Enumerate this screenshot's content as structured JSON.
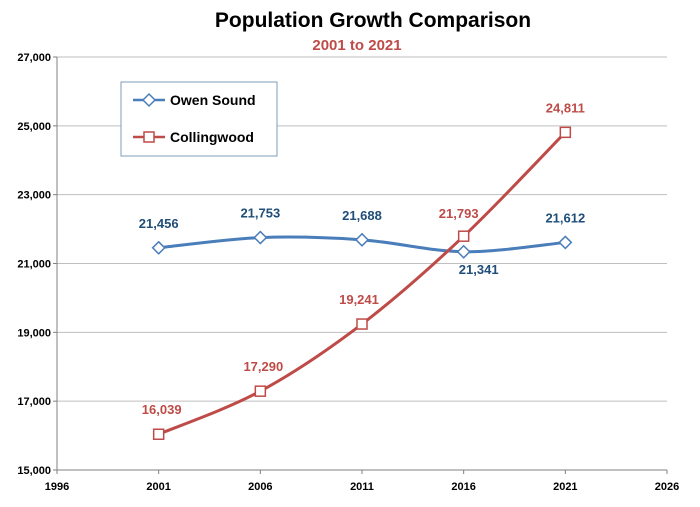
{
  "chart_data": {
    "type": "line",
    "title": "Population Growth Comparison",
    "subtitle": "2001 to 2021",
    "x": [
      2001,
      2006,
      2011,
      2016,
      2021
    ],
    "xlim": [
      1996,
      2026
    ],
    "ylim": [
      15000,
      27000
    ],
    "x_ticks": [
      "1996",
      "2001",
      "2006",
      "2011",
      "2016",
      "2021",
      "2026"
    ],
    "y_ticks": [
      "15,000",
      "17,000",
      "19,000",
      "21,000",
      "23,000",
      "25,000",
      "27,000"
    ],
    "grid": "horizontal",
    "legend_position": "top-left",
    "series": [
      {
        "name": "Owen Sound",
        "color": "#4a7ebb",
        "marker": "diamond",
        "values": [
          21456,
          21753,
          21688,
          21341,
          21612
        ],
        "labels": [
          "21,456",
          "21,753",
          "21,688",
          "21,341",
          "21,612"
        ]
      },
      {
        "name": "Collingwood",
        "color": "#be4b48",
        "marker": "square",
        "values": [
          16039,
          17290,
          19241,
          21793,
          24811
        ],
        "labels": [
          "16,039",
          "17,290",
          "19,241",
          "21,793",
          "24,811"
        ]
      }
    ],
    "subtitle_color": "#be4b48",
    "owen_label_color": "#1f4e79",
    "collingwood_label_color": "#be4b48"
  }
}
